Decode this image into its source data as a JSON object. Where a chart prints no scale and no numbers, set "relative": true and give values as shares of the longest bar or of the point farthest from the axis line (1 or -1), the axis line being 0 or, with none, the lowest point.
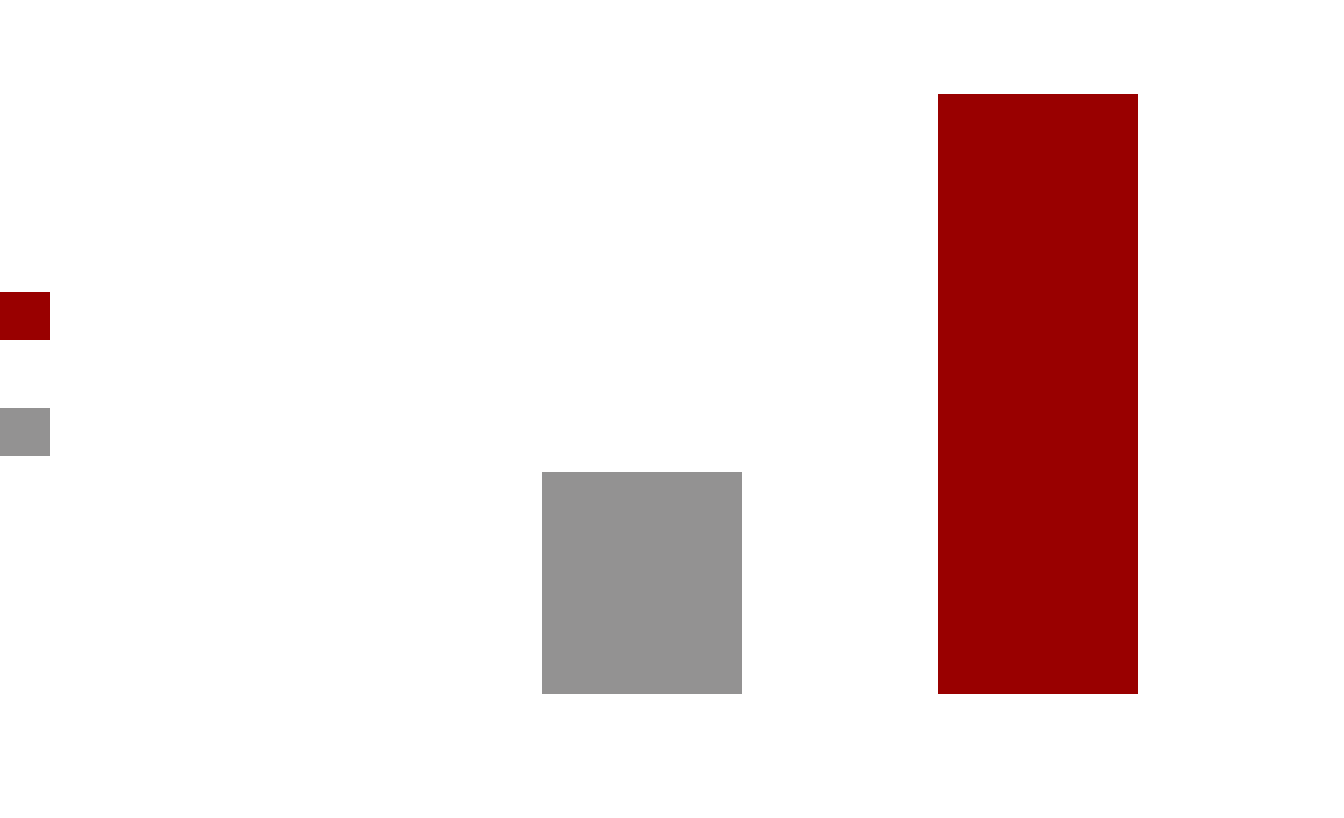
{
  "chart_data": {
    "type": "bar",
    "relative": true,
    "categories": [
      null,
      null
    ],
    "values": [
      0.37,
      1
    ],
    "colors": [
      "#939292",
      "#990000"
    ],
    "grid": false
  }
}
